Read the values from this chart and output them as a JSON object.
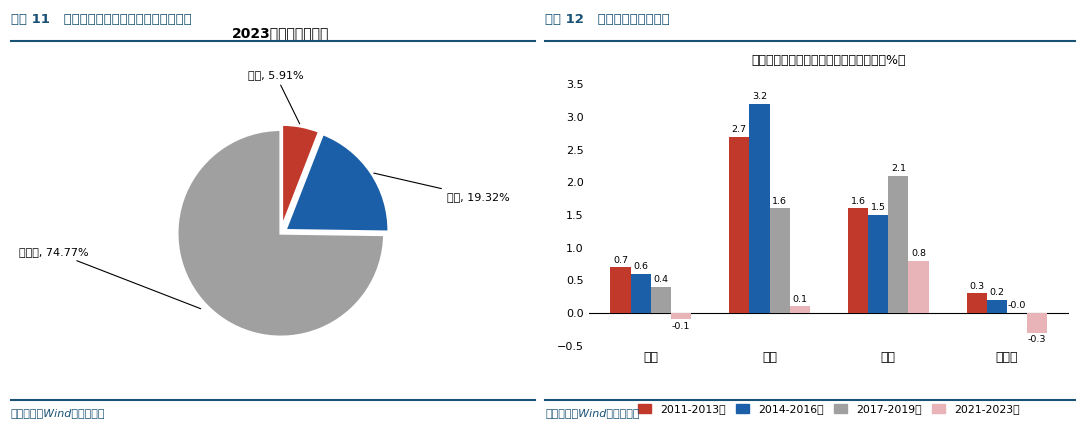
{
  "pie": {
    "title": "2023年全国人口分布",
    "labels": [
      "一线",
      "二线",
      "三四线"
    ],
    "values": [
      5.91,
      19.32,
      74.77
    ],
    "colors": [
      "#c0392b",
      "#1a5fa8",
      "#a0a0a0"
    ],
    "explode": [
      0.05,
      0.05,
      0.0
    ],
    "label_yixi": "一线, 5.91%",
    "label_erxi": "二线, 19.32%",
    "label_sansix": "三四线, 74.77%"
  },
  "bar": {
    "title": "常住人口：各能级城市每三年增速变化（%）",
    "categories": [
      "全国",
      "一线",
      "二线",
      "三四线"
    ],
    "series": [
      {
        "name": "2011-2013年",
        "color": "#c0392b",
        "values": [
          0.7,
          2.7,
          1.6,
          0.3
        ]
      },
      {
        "name": "2014-2016年",
        "color": "#1a5fa8",
        "values": [
          0.6,
          3.2,
          1.5,
          0.2
        ]
      },
      {
        "name": "2017-2019年",
        "color": "#a0a0a0",
        "values": [
          0.4,
          1.6,
          2.1,
          0.0
        ]
      },
      {
        "name": "2021-2023年",
        "color": "#e8b4b8",
        "values": [
          -0.1,
          0.1,
          0.8,
          -0.3
        ]
      }
    ],
    "val_labels": [
      [
        0.7,
        2.7,
        1.6,
        0.3
      ],
      [
        0.6,
        3.2,
        1.5,
        0.2
      ],
      [
        0.4,
        1.6,
        2.1,
        "-0.0"
      ],
      [
        -0.1,
        0.1,
        0.8,
        -0.3
      ]
    ],
    "ylim": [
      -0.5,
      3.6
    ],
    "yticks": [
      -0.5,
      0.0,
      0.5,
      1.0,
      1.5,
      2.0,
      2.5,
      3.0,
      3.5
    ]
  },
  "header1": "图表 11   全国人口分布：一线、二线、三四线",
  "header2": "图表 12   人口变化：三年维度",
  "footer": "资料来源：Wind，华创证券",
  "header_color": "#1a5276",
  "footer_color": "#1a5276",
  "divider_color": "#1a5276",
  "bg_color": "#ffffff"
}
